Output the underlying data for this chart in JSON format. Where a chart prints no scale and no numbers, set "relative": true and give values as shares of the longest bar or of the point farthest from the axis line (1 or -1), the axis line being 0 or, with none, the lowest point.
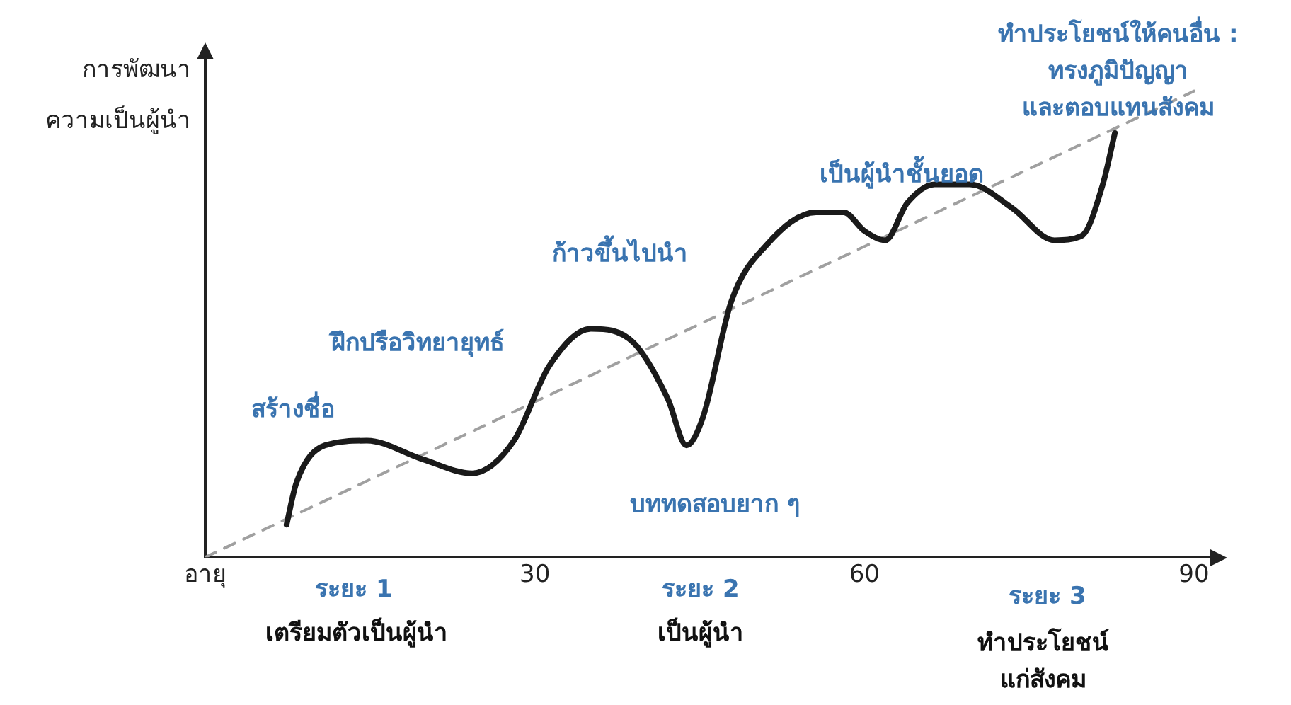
{
  "chart_data": {
    "type": "line",
    "relative": true,
    "ylabel": "การพัฒนา\nความเป็นผู้นำ",
    "xlim": [
      0,
      92
    ],
    "xticks": [
      {
        "value": 0,
        "label": "อายุ"
      },
      30,
      60,
      90
    ],
    "marker": "none",
    "series": [
      {
        "color": "#1a1a1a",
        "x": [
          7.4,
          8.3,
          10.9,
          14.7,
          19.8,
          24.3,
          28.1,
          31.3,
          35.1,
          39.0,
          42.1,
          43.8,
          45.3,
          47.9,
          51.1,
          55.6,
          58.1,
          60.0,
          61.9,
          63.9,
          66.4,
          69.6,
          73.4,
          77.3,
          79.8,
          81.7,
          82.8
        ],
        "values": [
          0.07,
          0.16,
          0.24,
          0.25,
          0.21,
          0.18,
          0.25,
          0.41,
          0.49,
          0.46,
          0.34,
          0.24,
          0.3,
          0.55,
          0.67,
          0.74,
          0.74,
          0.7,
          0.68,
          0.76,
          0.8,
          0.8,
          0.75,
          0.68,
          0.69,
          0.8,
          0.91
        ]
      },
      {
        "color": "#a0a0a0",
        "line_style": "dashed",
        "x": [
          0,
          90
        ],
        "values": [
          0,
          1
        ]
      }
    ],
    "annotations": [
      "สร้างชื่อ",
      "ฝึกปรือวิทยายุทธ์",
      "ก้าวขึ้นไปนำ",
      "บททดสอบยาก ๆ",
      "เป็นผู้นำชั้นยอด",
      "ทำประโยชน์ให้คนอื่น :\nทรงภูมิปัญญา\nและตอบแทนสังคม",
      "ระยะ 1",
      "เตรียมตัวเป็นผู้นำ",
      "ระยะ 2",
      "เป็นผู้นำ",
      "ระยะ 3",
      "ทำประโยชน์\nแก่สังคม"
    ]
  }
}
